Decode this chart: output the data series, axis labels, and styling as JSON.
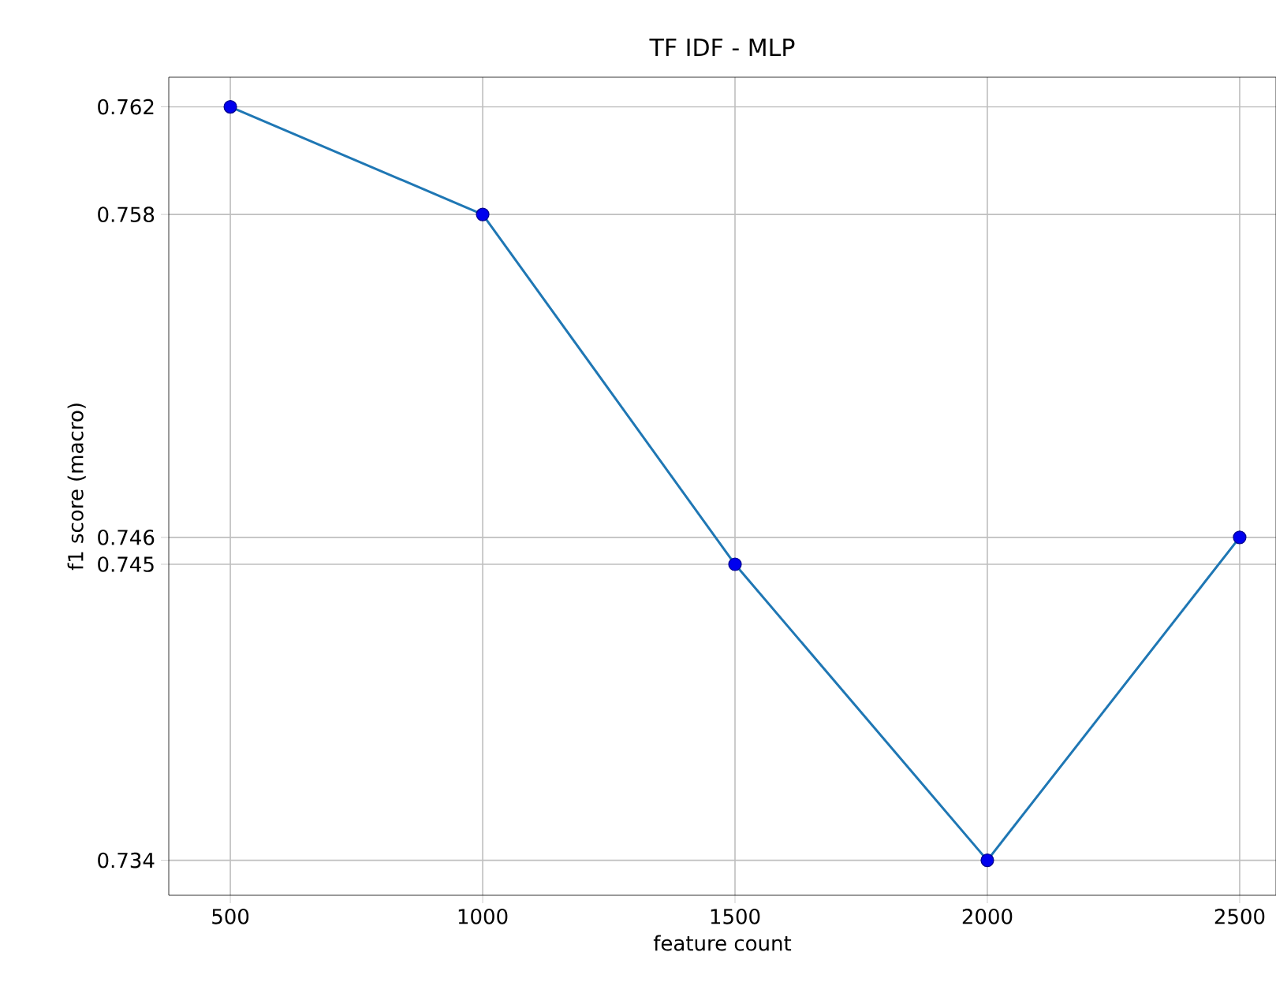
{
  "chart_data": {
    "type": "line",
    "title": "TF IDF - MLP",
    "xlabel": "feature count",
    "ylabel": "f1 score (macro)",
    "x": [
      500,
      1000,
      1500,
      2000,
      2500
    ],
    "series": [
      {
        "color": "#1f77b4",
        "values": [
          0.762,
          0.758,
          0.745,
          0.734,
          0.746
        ]
      },
      {
        "type": "scatter",
        "color": "#0000ee",
        "values": [
          0.762,
          0.758,
          0.745,
          0.734,
          0.746
        ]
      }
    ],
    "xlim": [
      378,
      2572
    ],
    "ylim": [
      0.7327,
      0.7631
    ],
    "xticks": [
      500,
      1000,
      1500,
      2000,
      2500
    ],
    "yticks": [
      0.734,
      0.745,
      0.746,
      0.758,
      0.762
    ],
    "grid": true
  }
}
